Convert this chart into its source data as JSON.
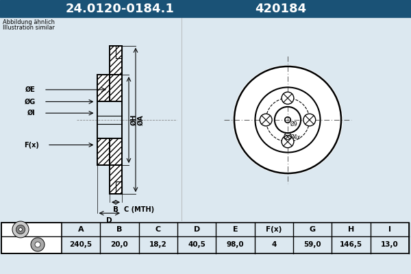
{
  "title_part": "24.0120-0184.1",
  "title_code": "420184",
  "title_bg": "#1a5276",
  "title_fg": "#ffffff",
  "bg_color": "#dce8f0",
  "note_line1": "Abbildung ähnlich",
  "note_line2": "Illustration similar",
  "table_headers": [
    "A",
    "B",
    "C",
    "D",
    "E",
    "F(x)",
    "G",
    "H",
    "I"
  ],
  "table_values": [
    "240,5",
    "20,0",
    "18,2",
    "40,5",
    "98,0",
    "4",
    "59,0",
    "146,5",
    "13,0"
  ]
}
